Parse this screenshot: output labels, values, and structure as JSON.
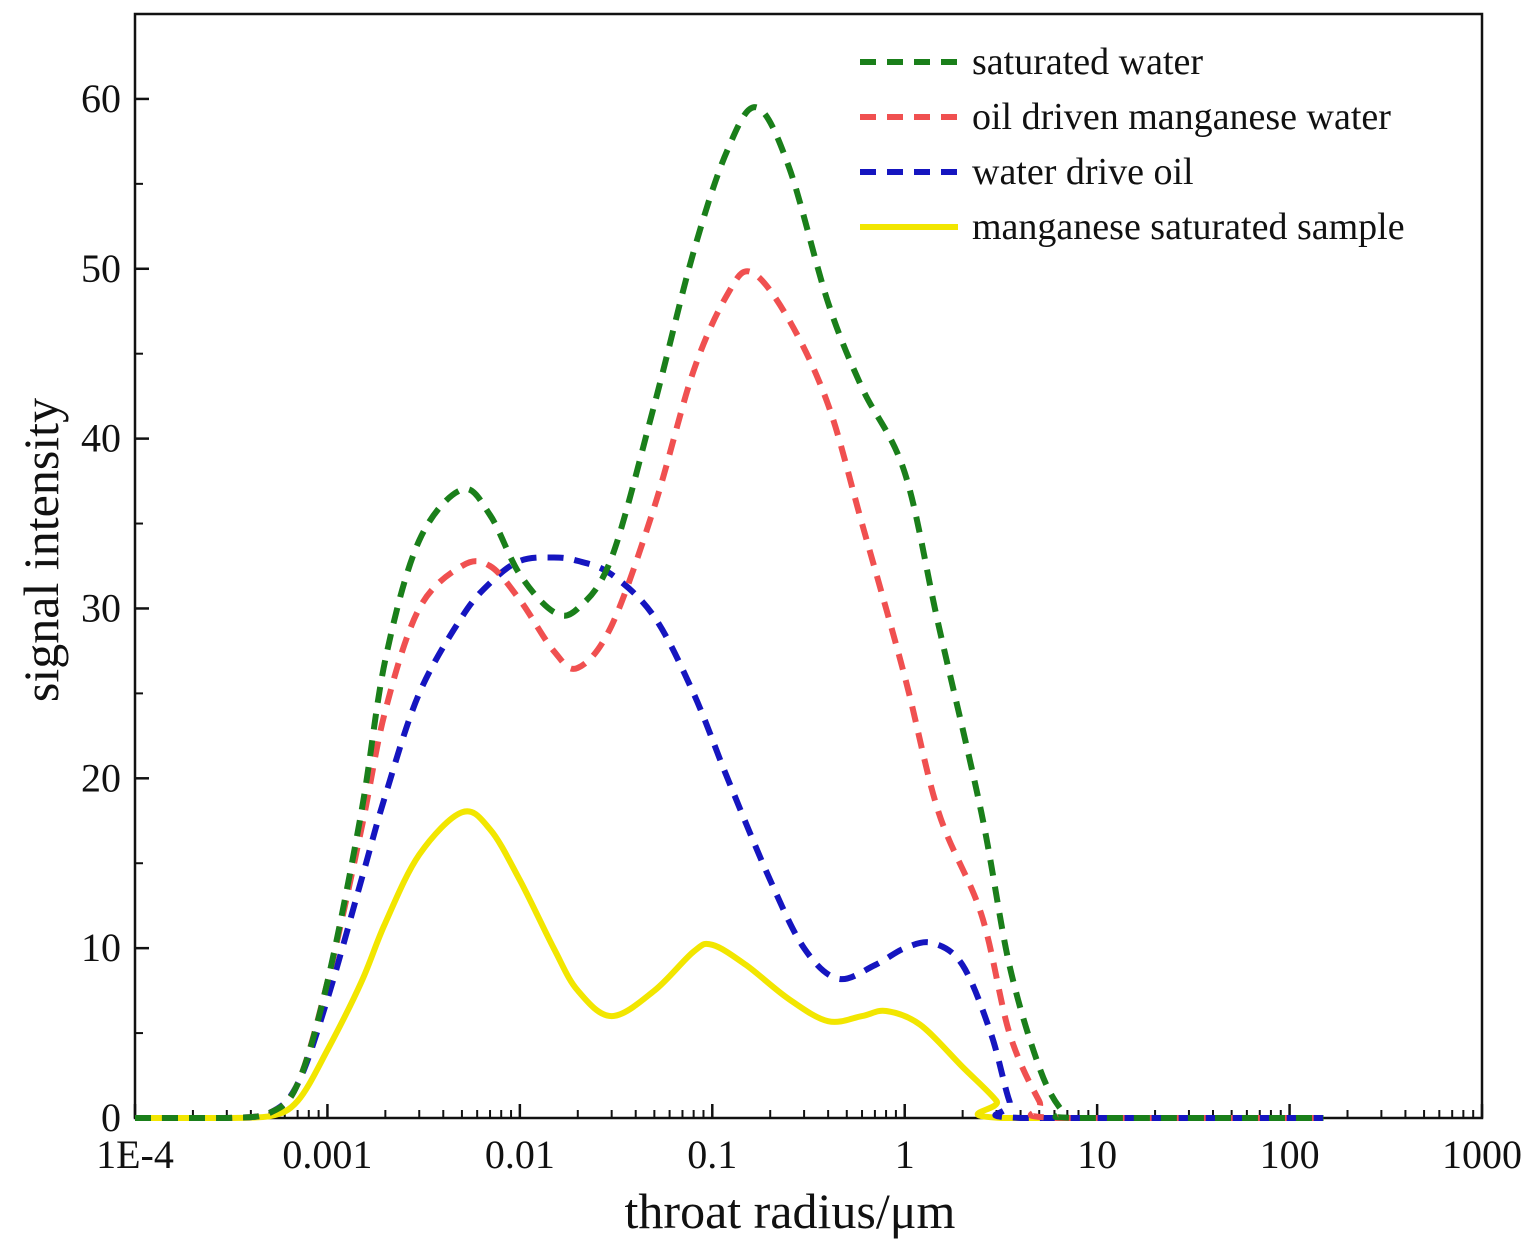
{
  "chart_data": {
    "type": "line",
    "title": "",
    "xlabel": "throat radius/μm",
    "ylabel": "signal intensity",
    "xscale": "log",
    "xlim": [
      0.0001,
      1000
    ],
    "ylim": [
      0,
      65
    ],
    "x_tick_values": [
      0.0001,
      0.001,
      0.01,
      0.1,
      1,
      10,
      100,
      1000
    ],
    "x_tick_labels": [
      "1E-4",
      "0.001",
      "0.01",
      "0.1",
      "1",
      "10",
      "100",
      "1000"
    ],
    "y_tick_values": [
      0,
      10,
      20,
      30,
      40,
      50,
      60
    ],
    "y_tick_labels": [
      "0",
      "10",
      "20",
      "30",
      "40",
      "50",
      "60"
    ],
    "legend_position": "top-right",
    "series": [
      {
        "name": "saturated water",
        "color": "#1a7f1a",
        "style": "dashed",
        "points": [
          [
            0.0001,
            0
          ],
          [
            0.0003,
            0
          ],
          [
            0.0005,
            0.3
          ],
          [
            0.0007,
            2
          ],
          [
            0.001,
            8
          ],
          [
            0.0015,
            18
          ],
          [
            0.002,
            27
          ],
          [
            0.003,
            34
          ],
          [
            0.005,
            37
          ],
          [
            0.007,
            35.5
          ],
          [
            0.01,
            32
          ],
          [
            0.015,
            29.8
          ],
          [
            0.02,
            30
          ],
          [
            0.03,
            33
          ],
          [
            0.05,
            42
          ],
          [
            0.08,
            51
          ],
          [
            0.12,
            57
          ],
          [
            0.17,
            59.5
          ],
          [
            0.25,
            56
          ],
          [
            0.4,
            48
          ],
          [
            0.6,
            43
          ],
          [
            1,
            38
          ],
          [
            1.5,
            29
          ],
          [
            2.5,
            18
          ],
          [
            3.5,
            9
          ],
          [
            5,
            3
          ],
          [
            6.5,
            0.5
          ],
          [
            8,
            0
          ],
          [
            150,
            0
          ]
        ]
      },
      {
        "name": "oil driven manganese water",
        "color": "#f05050",
        "style": "dashed",
        "points": [
          [
            0.0001,
            0
          ],
          [
            0.0003,
            0
          ],
          [
            0.0005,
            0.3
          ],
          [
            0.0007,
            2
          ],
          [
            0.001,
            8
          ],
          [
            0.0015,
            17
          ],
          [
            0.002,
            24
          ],
          [
            0.003,
            30
          ],
          [
            0.005,
            32.5
          ],
          [
            0.007,
            32.5
          ],
          [
            0.01,
            30.5
          ],
          [
            0.015,
            27.5
          ],
          [
            0.02,
            26.5
          ],
          [
            0.03,
            29
          ],
          [
            0.05,
            36
          ],
          [
            0.08,
            44
          ],
          [
            0.12,
            48.5
          ],
          [
            0.16,
            49.8
          ],
          [
            0.25,
            47
          ],
          [
            0.4,
            42
          ],
          [
            0.6,
            35
          ],
          [
            1,
            26
          ],
          [
            1.5,
            18
          ],
          [
            2.5,
            12
          ],
          [
            3.5,
            5
          ],
          [
            5,
            1
          ],
          [
            6,
            0
          ],
          [
            150,
            0
          ]
        ]
      },
      {
        "name": "water drive oil",
        "color": "#1515c0",
        "style": "dashed",
        "points": [
          [
            0.0001,
            0
          ],
          [
            0.0003,
            0
          ],
          [
            0.0005,
            0.3
          ],
          [
            0.0007,
            2
          ],
          [
            0.001,
            7
          ],
          [
            0.0015,
            14
          ],
          [
            0.002,
            19
          ],
          [
            0.003,
            25
          ],
          [
            0.005,
            29.5
          ],
          [
            0.007,
            31.5
          ],
          [
            0.01,
            32.8
          ],
          [
            0.015,
            33
          ],
          [
            0.02,
            32.8
          ],
          [
            0.03,
            32
          ],
          [
            0.05,
            29.5
          ],
          [
            0.08,
            25
          ],
          [
            0.12,
            20
          ],
          [
            0.2,
            14
          ],
          [
            0.3,
            10
          ],
          [
            0.45,
            8.2
          ],
          [
            0.7,
            9
          ],
          [
            1,
            10
          ],
          [
            1.4,
            10.3
          ],
          [
            2,
            9
          ],
          [
            2.8,
            5
          ],
          [
            3.5,
            1
          ],
          [
            4,
            0
          ],
          [
            150,
            0
          ]
        ]
      },
      {
        "name": "manganese saturated sample",
        "color": "#f2e600",
        "style": "solid",
        "points": [
          [
            0.0001,
            0
          ],
          [
            0.0003,
            0
          ],
          [
            0.0005,
            0.1
          ],
          [
            0.0007,
            1
          ],
          [
            0.001,
            4
          ],
          [
            0.0015,
            8
          ],
          [
            0.002,
            11.5
          ],
          [
            0.003,
            15.5
          ],
          [
            0.005,
            18
          ],
          [
            0.007,
            17
          ],
          [
            0.01,
            14
          ],
          [
            0.015,
            10
          ],
          [
            0.02,
            7.5
          ],
          [
            0.03,
            6
          ],
          [
            0.05,
            7.5
          ],
          [
            0.08,
            9.8
          ],
          [
            0.1,
            10.2
          ],
          [
            0.15,
            9
          ],
          [
            0.25,
            7
          ],
          [
            0.4,
            5.7
          ],
          [
            0.6,
            6
          ],
          [
            0.8,
            6.3
          ],
          [
            1.2,
            5.5
          ],
          [
            2,
            3
          ],
          [
            3,
            1
          ],
          [
            3.2,
            0
          ],
          [
            150,
            0
          ]
        ]
      }
    ]
  }
}
